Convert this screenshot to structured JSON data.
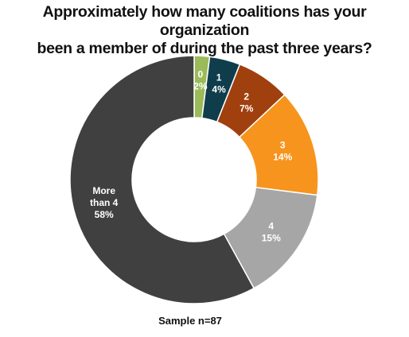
{
  "chart_data": {
    "type": "pie",
    "title": [
      "Approximately how many coalitions has your organization",
      "been a member of during the past three years?"
    ],
    "categories": [
      "0",
      "1",
      "2",
      "3",
      "4",
      "More than 4"
    ],
    "values": [
      2,
      4,
      7,
      14,
      15,
      58
    ],
    "label_lines": [
      [
        "0",
        "2%"
      ],
      [
        "1",
        "4%"
      ],
      [
        "2",
        "7%"
      ],
      [
        "3",
        "14%"
      ],
      [
        "4",
        "15%"
      ],
      [
        "More",
        "than 4",
        "58%"
      ]
    ],
    "colors": [
      "#9bbb59",
      "#0f3d4c",
      "#a0400f",
      "#f7941d",
      "#a6a6a6",
      "#404040"
    ],
    "donut": true,
    "start_angle": "12 o'clock",
    "direction": "clockwise",
    "legend": "none",
    "note": "Sample n=87"
  }
}
